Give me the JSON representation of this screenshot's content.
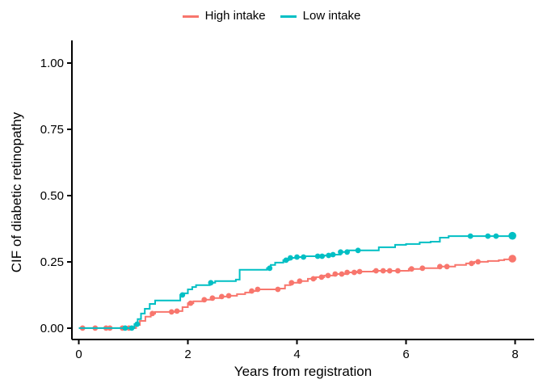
{
  "figure": {
    "background": "#FFFFFF",
    "axis_color": "#000000",
    "text_color": "#000000"
  },
  "chart_data": {
    "type": "line",
    "subtype": "step-cumulative-incidence",
    "title": "",
    "xlabel": "Years from registration",
    "ylabel": "CIF of diabetic retinopathy",
    "grid": false,
    "legend_position": "top",
    "axis_color": "#000000",
    "xlim": [
      -0.126,
      8.348
    ],
    "ylim": [
      -0.043,
      1.085
    ],
    "xticks": [
      {
        "v": 0,
        "label": "0"
      },
      {
        "v": 2,
        "label": "2"
      },
      {
        "v": 4,
        "label": "4"
      },
      {
        "v": 6,
        "label": "6"
      },
      {
        "v": 8,
        "label": "8"
      }
    ],
    "yticks": [
      {
        "v": 0.0,
        "label": "0.00"
      },
      {
        "v": 0.25,
        "label": "0.25"
      },
      {
        "v": 0.5,
        "label": "0.50"
      },
      {
        "v": 0.75,
        "label": "0.75"
      },
      {
        "v": 1.0,
        "label": "1.00"
      }
    ],
    "series": [
      {
        "name": "High intake",
        "color": "#F8766D",
        "steps": [
          [
            0.0,
            0.0
          ],
          [
            1.0,
            0.0
          ],
          [
            1.05,
            0.012
          ],
          [
            1.12,
            0.027
          ],
          [
            1.22,
            0.043
          ],
          [
            1.32,
            0.055
          ],
          [
            1.4,
            0.061
          ],
          [
            1.8,
            0.064
          ],
          [
            1.9,
            0.079
          ],
          [
            2.0,
            0.094
          ],
          [
            2.1,
            0.101
          ],
          [
            2.3,
            0.107
          ],
          [
            2.45,
            0.113
          ],
          [
            2.6,
            0.119
          ],
          [
            2.75,
            0.122
          ],
          [
            2.9,
            0.128
          ],
          [
            3.05,
            0.134
          ],
          [
            3.17,
            0.14
          ],
          [
            3.28,
            0.146
          ],
          [
            3.68,
            0.149
          ],
          [
            3.78,
            0.162
          ],
          [
            3.88,
            0.171
          ],
          [
            4.05,
            0.177
          ],
          [
            4.2,
            0.186
          ],
          [
            4.35,
            0.192
          ],
          [
            4.5,
            0.198
          ],
          [
            4.7,
            0.204
          ],
          [
            4.9,
            0.21
          ],
          [
            5.1,
            0.213
          ],
          [
            5.4,
            0.216
          ],
          [
            6.05,
            0.223
          ],
          [
            6.3,
            0.226
          ],
          [
            6.6,
            0.232
          ],
          [
            6.9,
            0.238
          ],
          [
            7.1,
            0.244
          ],
          [
            7.25,
            0.25
          ],
          [
            7.5,
            0.253
          ],
          [
            7.7,
            0.256
          ],
          [
            7.8,
            0.259
          ],
          [
            7.95,
            0.262
          ]
        ],
        "censor_marks_x": [
          0.07,
          0.3,
          0.5,
          0.57,
          0.8,
          0.92,
          1.35,
          1.7,
          1.8,
          2.05,
          2.3,
          2.45,
          2.62,
          2.75,
          3.17,
          3.28,
          3.65,
          3.9,
          4.05,
          4.3,
          4.45,
          4.57,
          4.7,
          4.82,
          4.92,
          5.05,
          5.15,
          5.45,
          5.58,
          5.7,
          5.85,
          6.1,
          6.3,
          6.62,
          6.75,
          7.2,
          7.32
        ],
        "end_marker_x": 7.95
      },
      {
        "name": "Low intake",
        "color": "#00BFC4",
        "steps": [
          [
            0.0,
            0.0
          ],
          [
            0.95,
            0.0
          ],
          [
            1.02,
            0.015
          ],
          [
            1.08,
            0.034
          ],
          [
            1.14,
            0.055
          ],
          [
            1.21,
            0.073
          ],
          [
            1.3,
            0.091
          ],
          [
            1.4,
            0.104
          ],
          [
            1.86,
            0.125
          ],
          [
            1.93,
            0.131
          ],
          [
            2.0,
            0.146
          ],
          [
            2.08,
            0.155
          ],
          [
            2.15,
            0.162
          ],
          [
            2.4,
            0.171
          ],
          [
            2.5,
            0.177
          ],
          [
            2.88,
            0.183
          ],
          [
            2.95,
            0.22
          ],
          [
            3.45,
            0.226
          ],
          [
            3.52,
            0.238
          ],
          [
            3.6,
            0.247
          ],
          [
            3.75,
            0.256
          ],
          [
            3.85,
            0.265
          ],
          [
            4.0,
            0.268
          ],
          [
            4.15,
            0.271
          ],
          [
            4.5,
            0.274
          ],
          [
            4.65,
            0.277
          ],
          [
            4.8,
            0.287
          ],
          [
            4.95,
            0.293
          ],
          [
            5.5,
            0.305
          ],
          [
            5.8,
            0.314
          ],
          [
            6.0,
            0.317
          ],
          [
            6.25,
            0.323
          ],
          [
            6.45,
            0.326
          ],
          [
            6.62,
            0.341
          ],
          [
            6.78,
            0.347
          ],
          [
            7.95,
            0.348
          ]
        ],
        "censor_marks_x": [
          0.85,
          0.97,
          1.07,
          1.9,
          2.42,
          3.5,
          3.8,
          3.88,
          4.0,
          4.12,
          4.38,
          4.46,
          4.58,
          4.66,
          4.8,
          4.92,
          5.12,
          7.18,
          7.5,
          7.65
        ],
        "end_marker_x": 7.95
      }
    ]
  }
}
